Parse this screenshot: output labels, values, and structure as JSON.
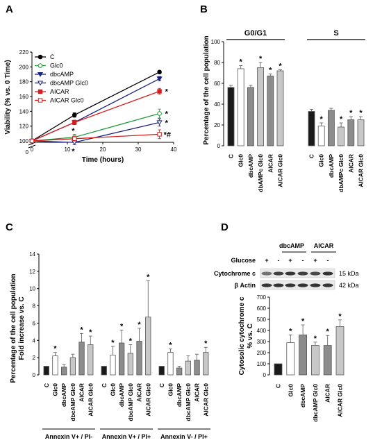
{
  "chart_data": [
    {
      "panel": "A",
      "type": "line",
      "xlabel": "Time (hours)",
      "ylabel": "Viability (% vs. 0 Time)",
      "xlim": [
        0,
        40
      ],
      "ylim": [
        0,
        220
      ],
      "xticks": [
        "0",
        "10",
        "20",
        "30",
        "40"
      ],
      "yticks": [
        "0",
        "100",
        "120",
        "140",
        "160",
        "180",
        "200",
        "220"
      ],
      "axis_break": true,
      "legend_position": "top-left",
      "series": [
        {
          "name": "C",
          "color": "#000000",
          "marker": "circle-filled",
          "x": [
            0,
            12,
            36
          ],
          "y": [
            100,
            135,
            193
          ],
          "err": [
            0,
            3,
            2
          ]
        },
        {
          "name": "Glc0",
          "color": "#1e9a3a",
          "marker": "circle-open",
          "x": [
            0,
            12,
            36
          ],
          "y": [
            100,
            105,
            137
          ],
          "err": [
            0,
            4,
            6
          ]
        },
        {
          "name": "dbcAMP",
          "color": "#1a237e",
          "marker": "triangle-down-filled",
          "x": [
            0,
            12,
            36
          ],
          "y": [
            100,
            125,
            184
          ],
          "err": [
            0,
            3,
            3
          ]
        },
        {
          "name": "dbcAMP Glc0",
          "color": "#1a237e",
          "marker": "triangle-down-open",
          "x": [
            0,
            12,
            36
          ],
          "y": [
            100,
            98,
            125
          ],
          "err": [
            0,
            3,
            5
          ]
        },
        {
          "name": "AICAR",
          "color": "#d81b1b",
          "marker": "square-filled",
          "x": [
            0,
            12,
            36
          ],
          "y": [
            100,
            125,
            167
          ],
          "err": [
            0,
            3,
            4
          ]
        },
        {
          "name": "AICAR Glc0",
          "color": "#d81b1b",
          "marker": "square-open",
          "x": [
            0,
            12,
            36
          ],
          "y": [
            100,
            103,
            109
          ],
          "err": [
            0,
            3,
            6
          ]
        }
      ],
      "annotations": [
        "*",
        "*",
        "*",
        "*",
        "*",
        "*#"
      ]
    },
    {
      "panel": "B",
      "type": "bar",
      "ylabel": "Percentage of the cell population",
      "ylim": [
        0,
        100
      ],
      "yticks": [
        "0",
        "20",
        "40",
        "60",
        "80",
        "100"
      ],
      "groups": [
        "G0/G1",
        "S"
      ],
      "categories": [
        "C",
        "Glc0",
        "dbcAMP",
        "dbAMPc Glc0",
        "AICAR",
        "AICAR Glc0"
      ],
      "series": [
        {
          "group": "G0/G1",
          "values": [
            56,
            74,
            56,
            75,
            67,
            72
          ],
          "err": [
            2,
            3,
            2,
            5,
            2,
            1
          ],
          "stars": [
            "",
            "*",
            "",
            "*",
            "*",
            "*"
          ]
        },
        {
          "group": "S",
          "values": [
            33,
            19,
            34,
            18,
            25,
            25
          ],
          "err": [
            2,
            3,
            2,
            4,
            3,
            3
          ],
          "stars": [
            "",
            "*",
            "",
            "*",
            "*",
            "*"
          ]
        }
      ]
    },
    {
      "panel": "C",
      "type": "bar",
      "ylabel": "Percentage of the cell population",
      "ylabel2": "Fold increase vs. C",
      "ylim": [
        0,
        14
      ],
      "yticks": [
        "0",
        "2",
        "4",
        "6",
        "8",
        "10",
        "12",
        "14"
      ],
      "categories": [
        "C",
        "Glc0",
        "dbcAMP",
        "dbcAMP Glc0",
        "AICAR",
        "AICAR Glc0"
      ],
      "series": [
        {
          "group": "Annexin V+ / PI-",
          "values": [
            1.0,
            2.2,
            0.9,
            2.0,
            3.8,
            3.5
          ],
          "err": [
            0,
            0.4,
            0.3,
            0.4,
            1.0,
            1.0
          ],
          "stars": [
            "",
            "*",
            "",
            "",
            "*",
            "*"
          ]
        },
        {
          "group": "Annexin V+ / PI+",
          "values": [
            1.0,
            2.3,
            3.7,
            2.5,
            3.9,
            6.7
          ],
          "err": [
            0,
            1.0,
            1.5,
            1.0,
            1.5,
            4.2
          ],
          "stars": [
            "",
            "*",
            "*",
            "*",
            "*",
            "*"
          ]
        },
        {
          "group": "Annexin V- / PI+",
          "values": [
            1.0,
            2.6,
            0.8,
            1.6,
            1.7,
            2.6
          ],
          "err": [
            0,
            0.4,
            0.2,
            0.6,
            0.7,
            0.6
          ],
          "stars": [
            "",
            "*",
            "",
            "",
            "",
            "*"
          ]
        }
      ]
    },
    {
      "panel": "D",
      "type": "bar",
      "ylabel": "Cytosolic cytochrome c",
      "ylabel2": "% vs. C",
      "ylim": [
        0,
        700
      ],
      "yticks": [
        "0",
        "100",
        "200",
        "300",
        "400",
        "500",
        "600",
        "700"
      ],
      "categories": [
        "C",
        "Glc0",
        "dbcAMP",
        "dbcAMP Glc0",
        "AICAR",
        "AICAR Glc0"
      ],
      "values": [
        100,
        290,
        360,
        265,
        265,
        435
      ],
      "err": [
        0,
        70,
        90,
        30,
        90,
        60
      ],
      "stars": [
        "",
        "*",
        "*",
        "*",
        "*",
        "*"
      ]
    }
  ],
  "western_blot": {
    "glucose_label": "Glucose",
    "glucose_signs": [
      "+",
      "-",
      "+",
      "-",
      "+",
      "-"
    ],
    "treatment_labels": [
      "dbcAMP",
      "AICAR"
    ],
    "rows": [
      {
        "name": "Cytochrome c",
        "size": "15 kDa"
      },
      {
        "name": "β Actin",
        "size": "42 kDa"
      }
    ]
  },
  "panel_labels": [
    "A",
    "B",
    "C",
    "D"
  ],
  "bar_fills": [
    "#1a1a1a",
    "#ffffff",
    "#8c8c8c",
    "#c8c8c8",
    "#8c8c8c",
    "#c8c8c8"
  ]
}
